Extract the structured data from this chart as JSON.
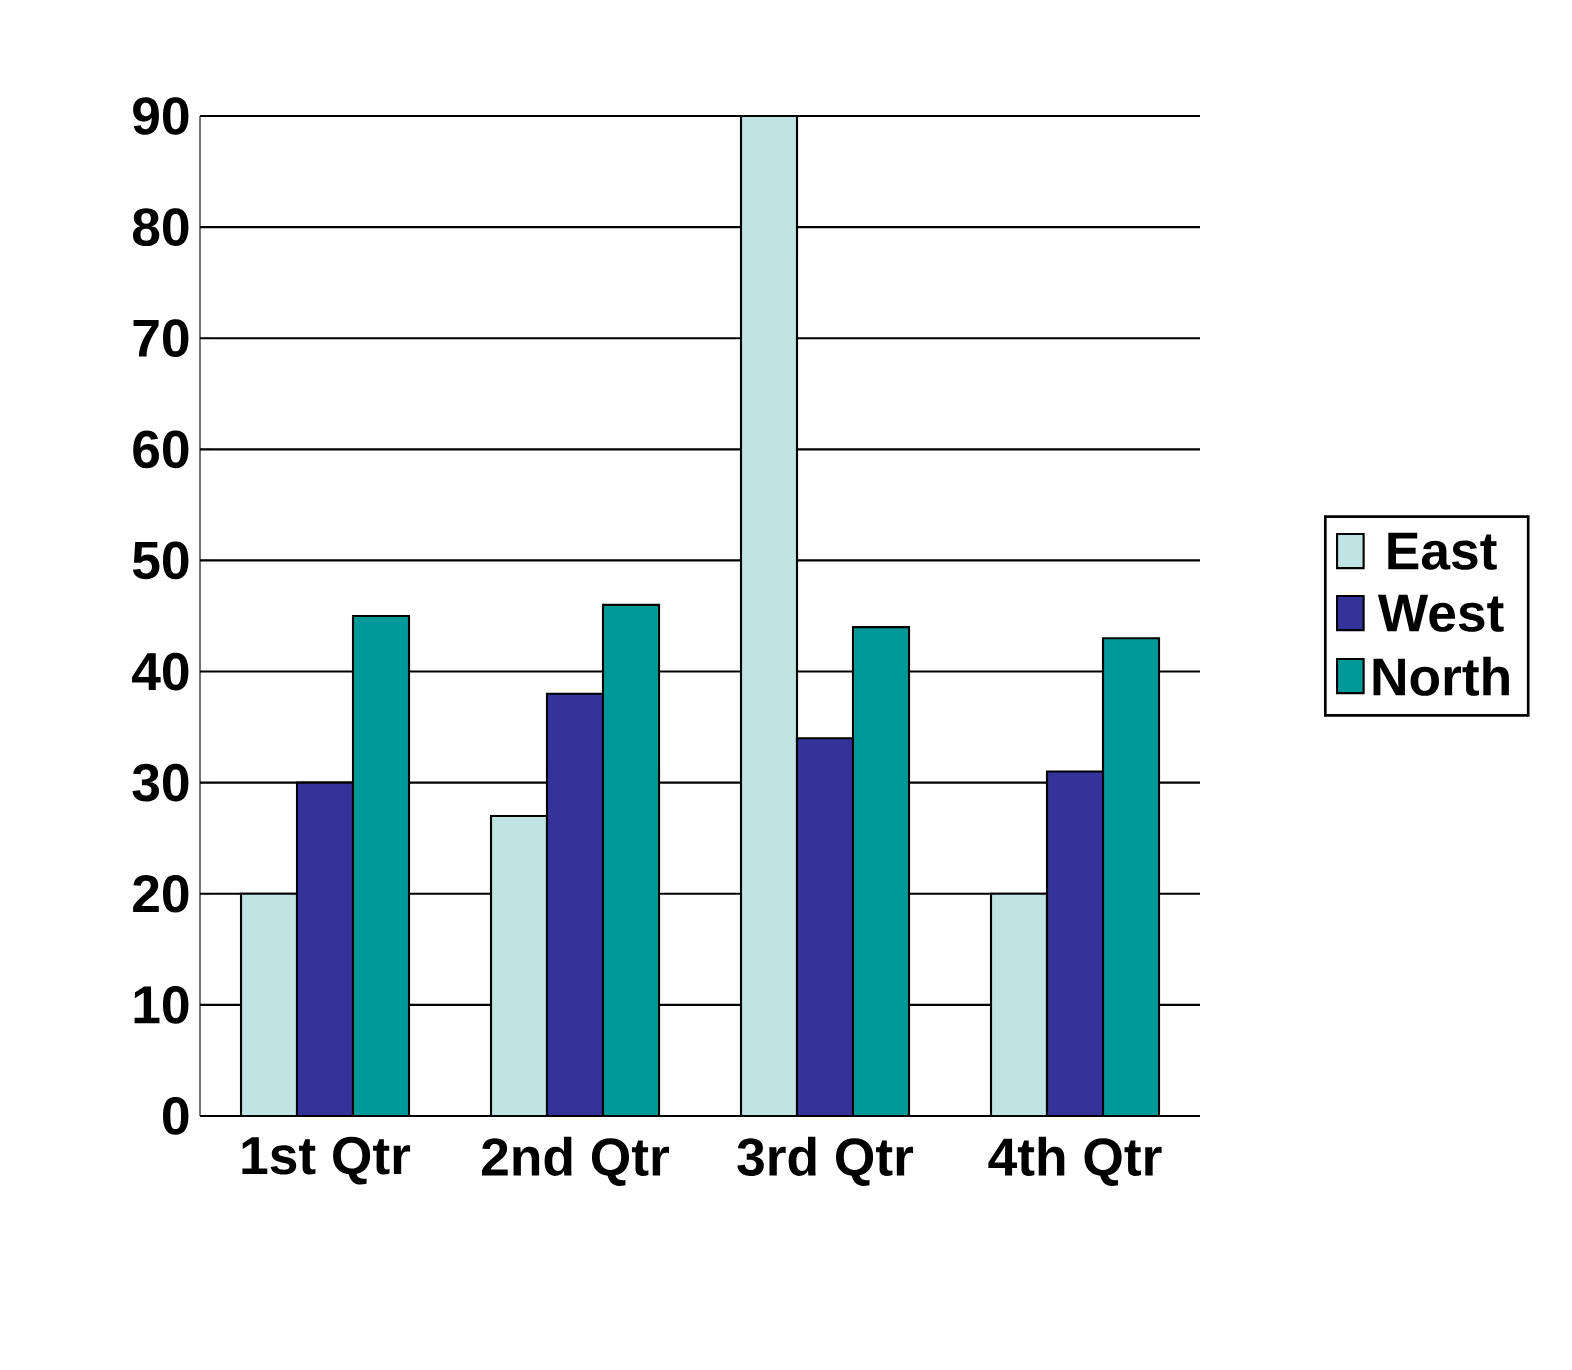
{
  "chart_data": {
    "type": "bar",
    "categories": [
      "1st Qtr",
      "2nd Qtr",
      "3rd Qtr",
      "4th Qtr"
    ],
    "series": [
      {
        "name": "East",
        "color": "#c0e4e4",
        "values": [
          20,
          27,
          90,
          20
        ]
      },
      {
        "name": "West",
        "color": "#333399",
        "values": [
          30,
          38,
          34,
          31
        ]
      },
      {
        "name": "North",
        "color": "#009999",
        "values": [
          45,
          46,
          44,
          43
        ]
      }
    ],
    "ylim": [
      0,
      90
    ],
    "yticks": [
      0,
      10,
      20,
      30,
      40,
      50,
      60,
      70,
      80,
      90
    ],
    "grid": "y",
    "legend": "right"
  }
}
